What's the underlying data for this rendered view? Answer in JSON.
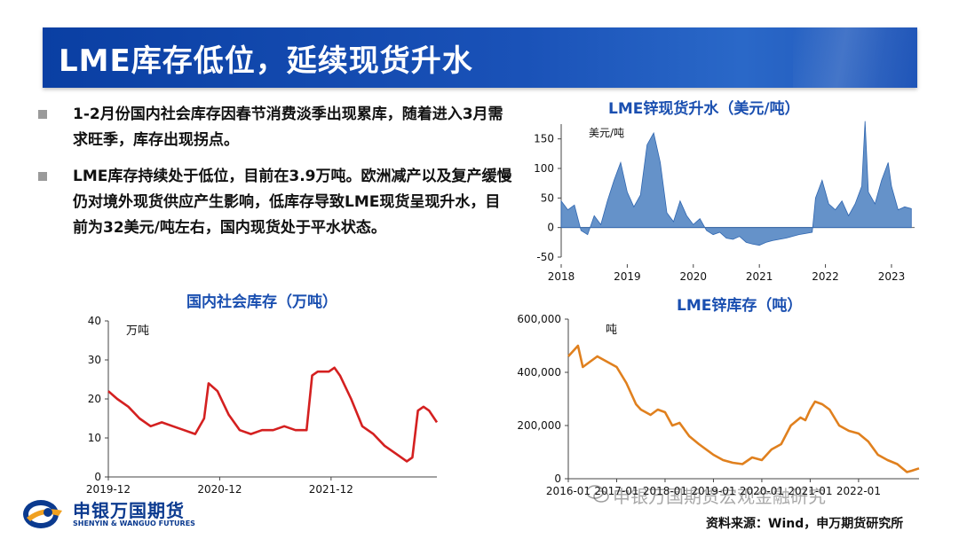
{
  "header": {
    "title": "LME库存低位，延续现货升水"
  },
  "bullets": [
    "1-2月份国内社会库存因春节消费淡季出现累库，随着进入3月需求旺季，库存出现拐点。",
    "LME库存持续处于低位，目前在3.9万吨。欧洲减产以及复产缓慢仍对境外现货供应产生影响，低库存导致LME现货呈现升水，目前为32美元/吨左右，国内现货处于平水状态。"
  ],
  "footer": {
    "logo_cn": "申银万国期货",
    "logo_en": "SHENYIN & WANGUO FUTURES",
    "watermark": "申银万国期货宏观金融研究",
    "source": "资料来源：Wind，申万期货研究所"
  },
  "colors": {
    "title_bar": "#0a3fa3",
    "chart_title": "#1a4fb0",
    "domestic": "#d42020",
    "lme_stock": "#e0801e",
    "premium": "#4a7fc0"
  },
  "chart_data": [
    {
      "id": "premium",
      "type": "area",
      "title": "LME锌现货升水（美元/吨）",
      "unit": "美元/吨",
      "x_ticks": [
        "2018",
        "2019",
        "2020",
        "2021",
        "2022",
        "2023"
      ],
      "y_ticks": [
        "150",
        "100",
        "50",
        "0",
        "-50"
      ],
      "ylim": [
        -50,
        175
      ],
      "x_range": [
        2018.0,
        2023.35
      ],
      "points": [
        [
          2018.0,
          45
        ],
        [
          2018.1,
          30
        ],
        [
          2018.2,
          38
        ],
        [
          2018.3,
          -5
        ],
        [
          2018.4,
          -12
        ],
        [
          2018.5,
          20
        ],
        [
          2018.6,
          5
        ],
        [
          2018.7,
          45
        ],
        [
          2018.8,
          80
        ],
        [
          2018.9,
          110
        ],
        [
          2019.0,
          60
        ],
        [
          2019.1,
          35
        ],
        [
          2019.2,
          55
        ],
        [
          2019.3,
          140
        ],
        [
          2019.4,
          160
        ],
        [
          2019.5,
          110
        ],
        [
          2019.6,
          25
        ],
        [
          2019.7,
          10
        ],
        [
          2019.8,
          45
        ],
        [
          2019.9,
          20
        ],
        [
          2020.0,
          5
        ],
        [
          2020.1,
          15
        ],
        [
          2020.2,
          -5
        ],
        [
          2020.3,
          -12
        ],
        [
          2020.4,
          -8
        ],
        [
          2020.5,
          -18
        ],
        [
          2020.6,
          -20
        ],
        [
          2020.7,
          -15
        ],
        [
          2020.8,
          -25
        ],
        [
          2020.9,
          -28
        ],
        [
          2021.0,
          -30
        ],
        [
          2021.1,
          -25
        ],
        [
          2021.2,
          -22
        ],
        [
          2021.3,
          -20
        ],
        [
          2021.4,
          -18
        ],
        [
          2021.5,
          -15
        ],
        [
          2021.6,
          -12
        ],
        [
          2021.7,
          -10
        ],
        [
          2021.8,
          -8
        ],
        [
          2021.85,
          50
        ],
        [
          2021.95,
          80
        ],
        [
          2022.05,
          40
        ],
        [
          2022.15,
          30
        ],
        [
          2022.25,
          45
        ],
        [
          2022.35,
          20
        ],
        [
          2022.45,
          40
        ],
        [
          2022.55,
          70
        ],
        [
          2022.6,
          180
        ],
        [
          2022.65,
          60
        ],
        [
          2022.75,
          40
        ],
        [
          2022.85,
          80
        ],
        [
          2022.95,
          110
        ],
        [
          2023.0,
          70
        ],
        [
          2023.1,
          30
        ],
        [
          2023.2,
          35
        ],
        [
          2023.3,
          32
        ]
      ]
    },
    {
      "id": "domestic",
      "type": "line",
      "title": "国内社会库存（万吨）",
      "unit": "万吨",
      "x_ticks": [
        "2019-12",
        "2020-12",
        "2021-12"
      ],
      "y_ticks": [
        "40",
        "30",
        "20",
        "10",
        "0"
      ],
      "ylim": [
        0,
        40
      ],
      "x_range": [
        2019.92,
        2022.87
      ],
      "points": [
        [
          2019.92,
          22
        ],
        [
          2020.0,
          20
        ],
        [
          2020.1,
          18
        ],
        [
          2020.2,
          15
        ],
        [
          2020.3,
          13
        ],
        [
          2020.4,
          14
        ],
        [
          2020.5,
          13
        ],
        [
          2020.6,
          12
        ],
        [
          2020.7,
          11
        ],
        [
          2020.78,
          15
        ],
        [
          2020.82,
          24
        ],
        [
          2020.9,
          22
        ],
        [
          2021.0,
          16
        ],
        [
          2021.1,
          12
        ],
        [
          2021.2,
          11
        ],
        [
          2021.3,
          12
        ],
        [
          2021.4,
          12
        ],
        [
          2021.5,
          13
        ],
        [
          2021.6,
          12
        ],
        [
          2021.7,
          12
        ],
        [
          2021.75,
          26
        ],
        [
          2021.8,
          27
        ],
        [
          2021.9,
          27
        ],
        [
          2021.95,
          28
        ],
        [
          2022.0,
          26
        ],
        [
          2022.1,
          20
        ],
        [
          2022.2,
          13
        ],
        [
          2022.3,
          11
        ],
        [
          2022.4,
          8
        ],
        [
          2022.5,
          6
        ],
        [
          2022.6,
          4
        ],
        [
          2022.65,
          5
        ],
        [
          2022.7,
          17
        ],
        [
          2022.75,
          18
        ],
        [
          2022.8,
          17
        ],
        [
          2022.87,
          14
        ]
      ]
    },
    {
      "id": "lme-stock",
      "type": "line",
      "title": "LME锌库存（吨）",
      "unit": "吨",
      "x_ticks": [
        "2016-01",
        "2017-01",
        "2018-01",
        "2019-01",
        "2020-01",
        "2021-01",
        "2022-01"
      ],
      "y_ticks": [
        "600,000",
        "400,000",
        "200,000",
        "0"
      ],
      "ylim": [
        0,
        600000
      ],
      "x_range": [
        2016.0,
        2023.25
      ],
      "points": [
        [
          2016.0,
          460000
        ],
        [
          2016.1,
          480000
        ],
        [
          2016.2,
          500000
        ],
        [
          2016.3,
          420000
        ],
        [
          2016.45,
          440000
        ],
        [
          2016.6,
          460000
        ],
        [
          2016.8,
          440000
        ],
        [
          2017.0,
          420000
        ],
        [
          2017.2,
          360000
        ],
        [
          2017.4,
          280000
        ],
        [
          2017.5,
          260000
        ],
        [
          2017.7,
          240000
        ],
        [
          2017.85,
          260000
        ],
        [
          2018.0,
          250000
        ],
        [
          2018.15,
          200000
        ],
        [
          2018.3,
          210000
        ],
        [
          2018.5,
          160000
        ],
        [
          2018.7,
          130000
        ],
        [
          2019.0,
          90000
        ],
        [
          2019.2,
          70000
        ],
        [
          2019.4,
          60000
        ],
        [
          2019.6,
          55000
        ],
        [
          2019.8,
          80000
        ],
        [
          2020.0,
          70000
        ],
        [
          2020.2,
          110000
        ],
        [
          2020.4,
          130000
        ],
        [
          2020.6,
          200000
        ],
        [
          2020.8,
          230000
        ],
        [
          2020.9,
          220000
        ],
        [
          2021.0,
          260000
        ],
        [
          2021.1,
          290000
        ],
        [
          2021.25,
          280000
        ],
        [
          2021.4,
          260000
        ],
        [
          2021.6,
          200000
        ],
        [
          2021.8,
          180000
        ],
        [
          2022.0,
          170000
        ],
        [
          2022.2,
          140000
        ],
        [
          2022.4,
          90000
        ],
        [
          2022.6,
          70000
        ],
        [
          2022.8,
          55000
        ],
        [
          2023.0,
          25000
        ],
        [
          2023.1,
          30000
        ],
        [
          2023.25,
          39000
        ]
      ]
    }
  ]
}
